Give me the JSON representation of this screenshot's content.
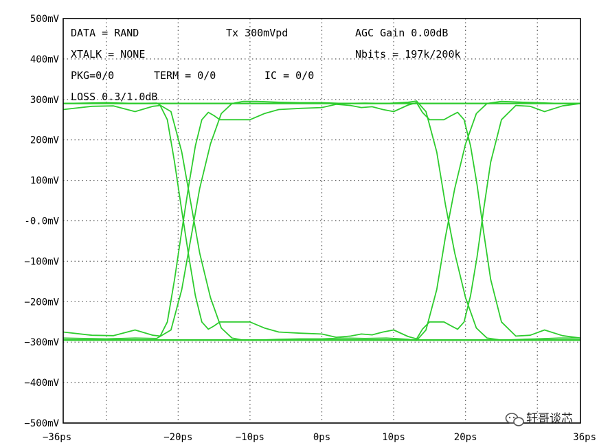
{
  "chart_data": {
    "type": "line",
    "subtype": "eye-diagram",
    "xlim": [
      -36,
      36
    ],
    "ylim": [
      -500,
      500
    ],
    "x_unit": "ps",
    "y_unit": "mV",
    "grid": true,
    "grid_style": "dotted",
    "xticks": [
      {
        "value": -36,
        "label": "−36ps"
      },
      {
        "value": -20,
        "label": "−20ps"
      },
      {
        "value": -10,
        "label": "−10ps"
      },
      {
        "value": 0,
        "label": "0ps"
      },
      {
        "value": 10,
        "label": "10ps"
      },
      {
        "value": 20,
        "label": "20ps"
      },
      {
        "value": 36,
        "label": "36ps"
      }
    ],
    "yticks": [
      {
        "value": 500,
        "label": "500mV"
      },
      {
        "value": 400,
        "label": "400mV"
      },
      {
        "value": 300,
        "label": "300mV"
      },
      {
        "value": 200,
        "label": "200mV"
      },
      {
        "value": 100,
        "label": "100mV"
      },
      {
        "value": 0,
        "label": "-0.0mV"
      },
      {
        "value": -100,
        "label": "−100mV"
      },
      {
        "value": -200,
        "label": "−200mV"
      },
      {
        "value": -300,
        "label": "−300mV"
      },
      {
        "value": -400,
        "label": "−400mV"
      },
      {
        "value": -500,
        "label": "−500mV"
      }
    ],
    "annotations": [
      "DATA = RAND",
      "Tx 300mVpd",
      "AGC Gain 0.00dB",
      "XTALK = NONE",
      "Nbits = 197k/200k",
      "PKG=0/0",
      "TERM = 0/0",
      "IC = 0/0",
      "LOSS 0.3/1.0dB"
    ],
    "reference_levels_mV": [
      290,
      -295
    ],
    "series": [
      {
        "color": "#2ecc2e",
        "x": [
          -36,
          -30,
          -26,
          -23,
          -21,
          -19.5,
          -18.2,
          -17,
          -15.5,
          -14,
          -12.5,
          -11,
          -9,
          -6,
          -3,
          0,
          3,
          6,
          9,
          12,
          13.2,
          14.5,
          16,
          17.2,
          18.5,
          20,
          21.5,
          23,
          25,
          28,
          30,
          33,
          36
        ],
        "y": [
          290,
          292,
          290,
          291,
          270,
          170,
          40,
          -80,
          -190,
          -265,
          -290,
          -295,
          -295,
          -293,
          -292,
          -292,
          -290,
          -291,
          -290,
          -293,
          -296,
          -270,
          -170,
          -40,
          80,
          190,
          265,
          290,
          295,
          293,
          292,
          290,
          290
        ]
      },
      {
        "color": "#2ecc2e",
        "x": [
          -36,
          -30,
          -26,
          -23,
          -21,
          -19.5,
          -18.2,
          -17,
          -15.5,
          -14,
          -12.5,
          -11,
          -9,
          -6,
          -3,
          0,
          3,
          6,
          9,
          12,
          13.2,
          14.5,
          16,
          17.2,
          18.5,
          20,
          21.5,
          23,
          25,
          28,
          30,
          33,
          36
        ],
        "y": [
          -290,
          -292,
          -290,
          -291,
          -270,
          -170,
          -40,
          80,
          190,
          265,
          290,
          295,
          295,
          293,
          292,
          292,
          290,
          291,
          290,
          293,
          296,
          270,
          170,
          40,
          -80,
          -190,
          -265,
          -290,
          -295,
          -293,
          -292,
          -290,
          -290
        ]
      },
      {
        "color": "#2ecc2e",
        "x": [
          -36,
          -32,
          -29,
          -26,
          -23.5,
          -22.5,
          -21.5,
          -20.5,
          -19.5,
          -18.5,
          -17.6,
          -16.7,
          -15.8,
          -15,
          -14.2,
          -13.3,
          -12.2,
          -10,
          -8,
          -6,
          -3,
          0,
          2,
          4,
          5.5,
          7,
          8.5,
          10,
          12,
          13.2,
          14,
          15,
          16,
          17,
          18,
          18.9,
          19.8,
          20.7,
          21.6,
          22.5,
          23.5,
          25,
          27,
          29,
          31,
          33.5,
          36
        ],
        "y": [
          275,
          283,
          284,
          270,
          283,
          285,
          250,
          145,
          25,
          -90,
          -185,
          -250,
          -268,
          -260,
          -250,
          -250,
          -250,
          -250,
          -265,
          -275,
          -278,
          -280,
          -288,
          -285,
          -280,
          -282,
          -275,
          -270,
          -286,
          -292,
          -268,
          -250,
          -250,
          -250,
          -260,
          -268,
          -250,
          -185,
          -90,
          25,
          145,
          250,
          285,
          283,
          270,
          284,
          290
        ]
      },
      {
        "color": "#2ecc2e",
        "x": [
          -36,
          -32,
          -29,
          -26,
          -23.5,
          -22.5,
          -21.5,
          -20.5,
          -19.5,
          -18.5,
          -17.6,
          -16.7,
          -15.8,
          -15,
          -14.2,
          -13.3,
          -12.2,
          -10,
          -8,
          -6,
          -3,
          0,
          2,
          4,
          5.5,
          7,
          8.5,
          10,
          12,
          13.2,
          14,
          15,
          16,
          17,
          18,
          18.9,
          19.8,
          20.7,
          21.6,
          22.5,
          23.5,
          25,
          27,
          29,
          31,
          33.5,
          36
        ],
        "y": [
          -275,
          -283,
          -284,
          -270,
          -283,
          -285,
          -250,
          -145,
          -25,
          90,
          185,
          250,
          268,
          260,
          250,
          250,
          250,
          250,
          265,
          275,
          278,
          280,
          288,
          285,
          280,
          282,
          275,
          270,
          286,
          292,
          268,
          250,
          250,
          250,
          260,
          268,
          250,
          185,
          90,
          -25,
          -145,
          -250,
          -285,
          -283,
          -270,
          -284,
          -290
        ]
      }
    ]
  },
  "watermark": {
    "text": "轩哥谈芯",
    "icon": "wechat-icon"
  }
}
